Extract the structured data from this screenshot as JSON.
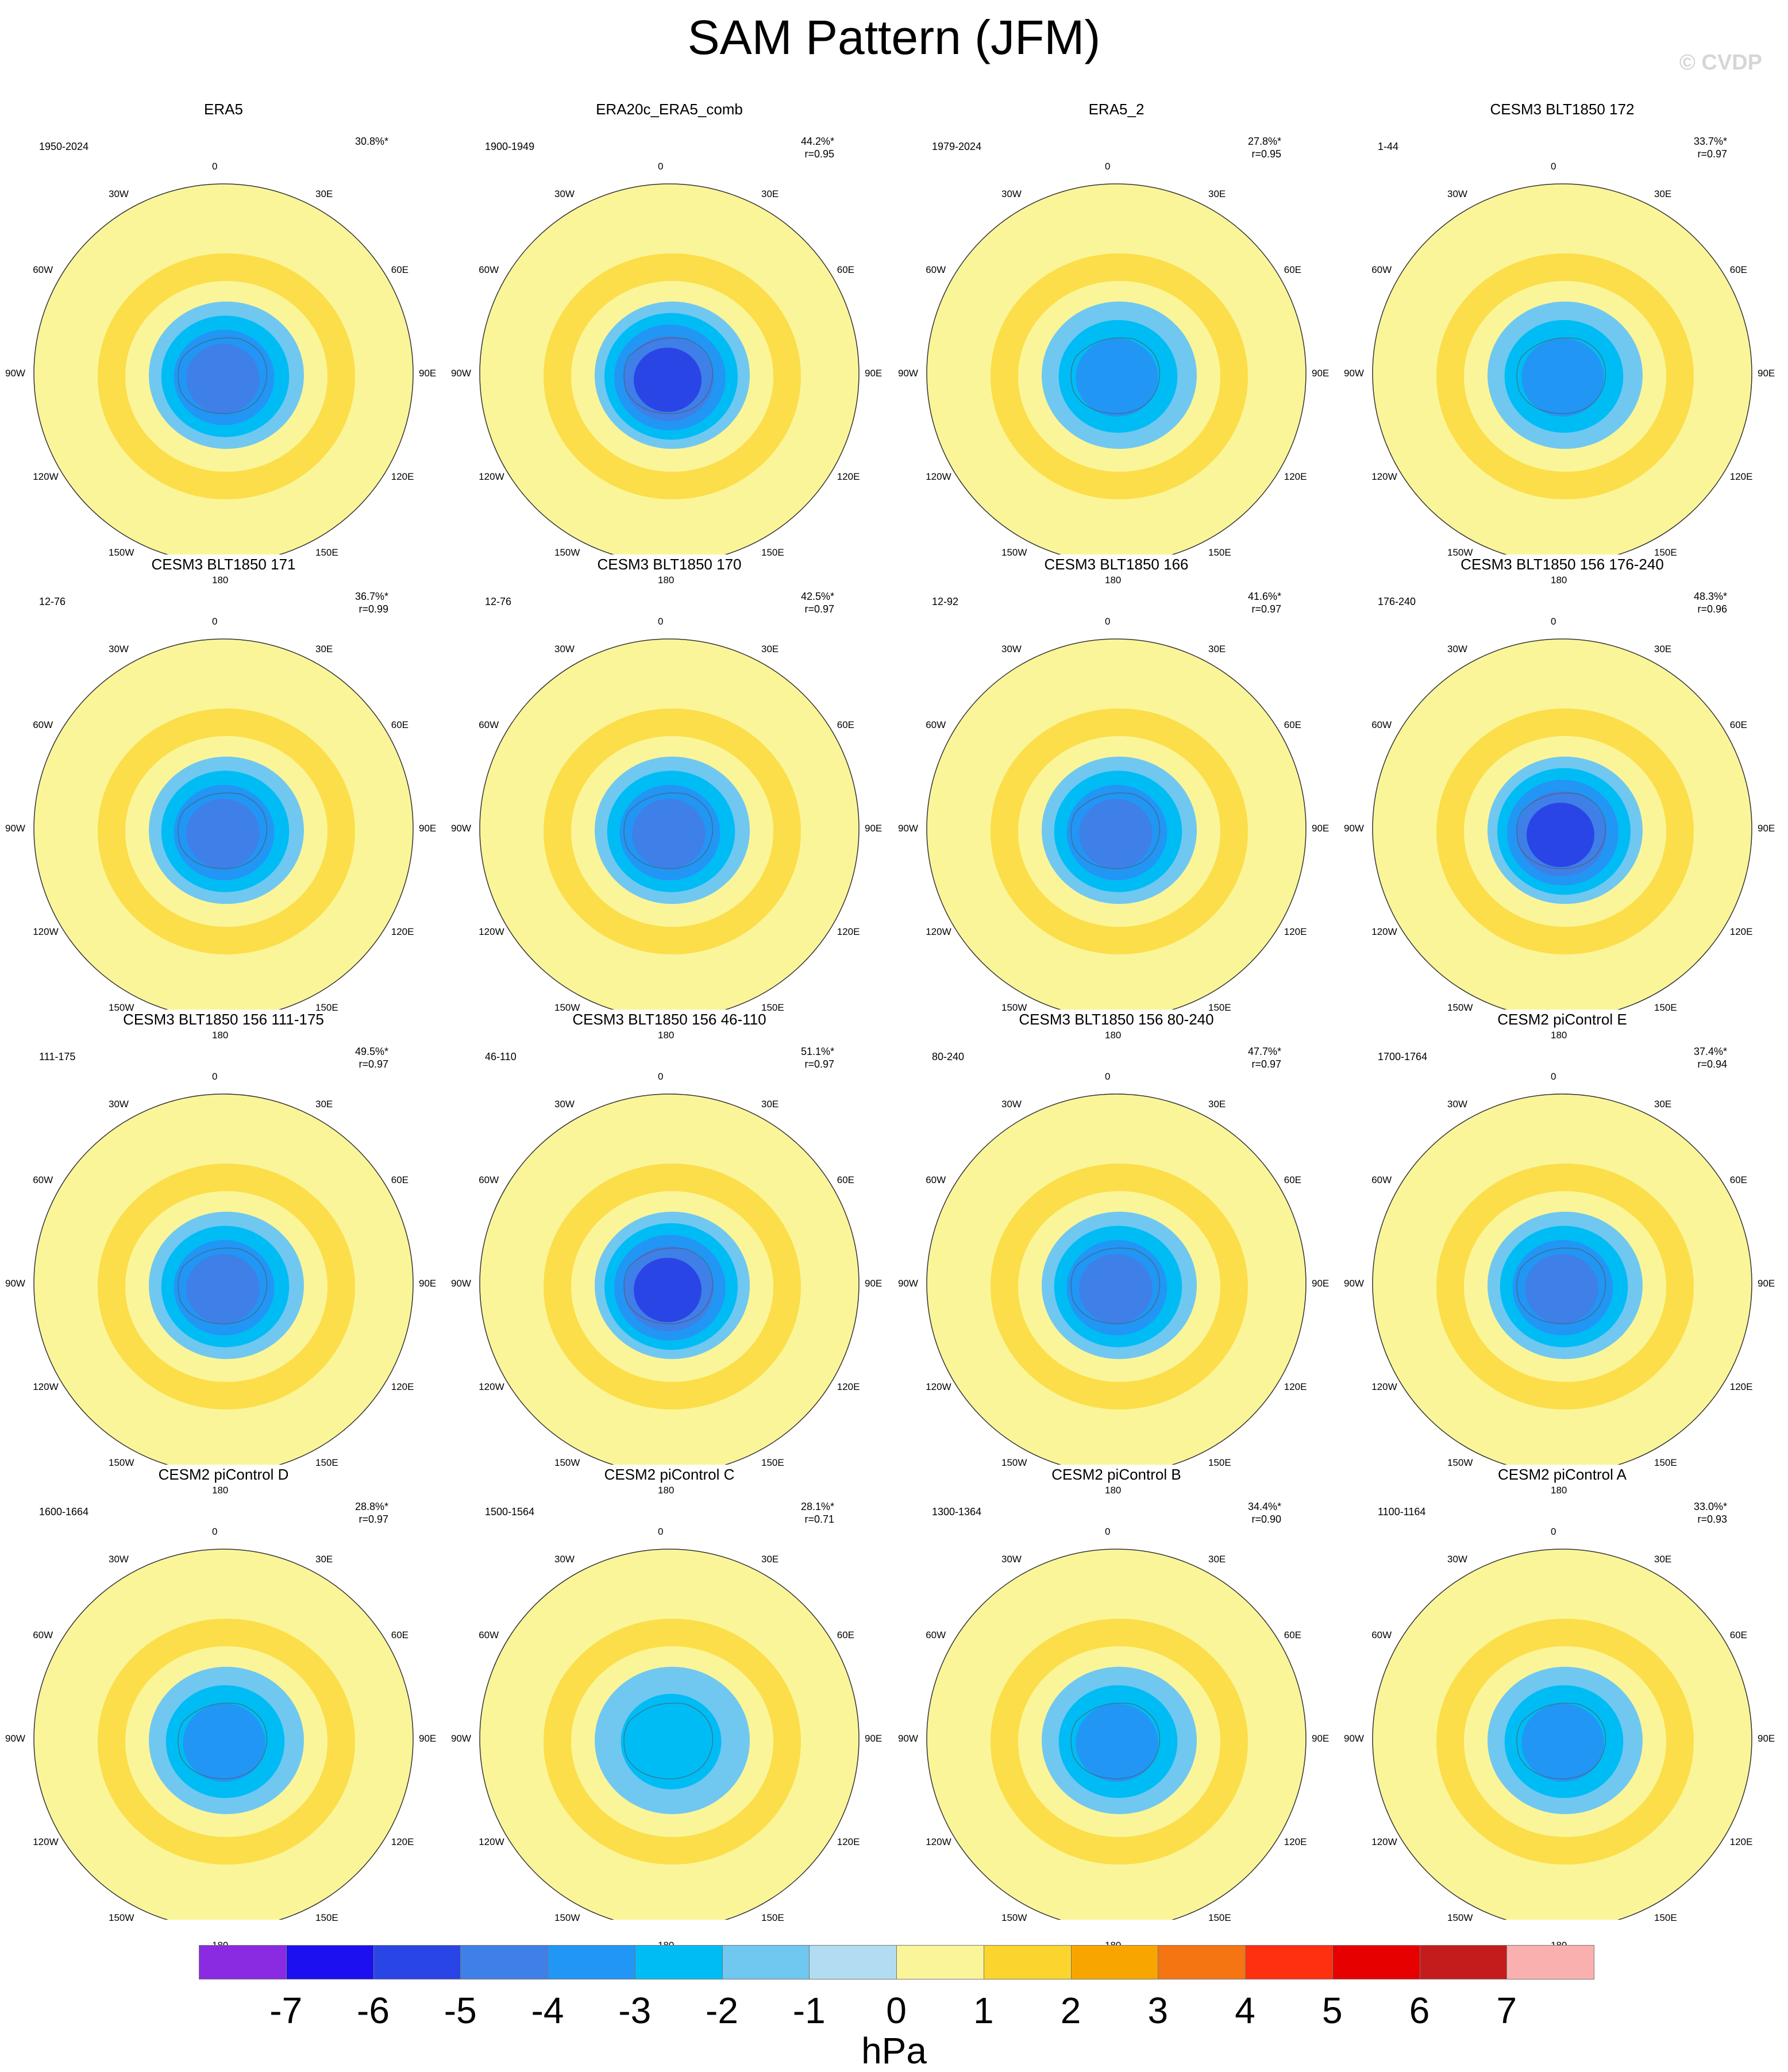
{
  "title": "SAM Pattern (JFM)",
  "watermark": "© CVDP",
  "chart_data": {
    "type": "polar-map",
    "variable_unit": "hPa",
    "projection": "south-polar stereographic",
    "lon_labels": [
      "0",
      "30E",
      "60E",
      "90E",
      "120E",
      "150E",
      "180",
      "150W",
      "120W",
      "90W",
      "60W",
      "30W"
    ],
    "colorbar": {
      "ticks": [
        "-7",
        "-6",
        "-5",
        "-4",
        "-3",
        "-2",
        "-1",
        "0",
        "1",
        "2",
        "3",
        "4",
        "5",
        "6",
        "7"
      ],
      "colors": [
        "#8a2be2",
        "#1c10f0",
        "#2a45e6",
        "#3f7fe8",
        "#2196f5",
        "#00bcf5",
        "#70c8f0",
        "#b2dcf2",
        "#fbf59a",
        "#fbd52d",
        "#f8a500",
        "#f57512",
        "#ff3010",
        "#e60000",
        "#c41c1c",
        "#fbb0b0"
      ]
    },
    "panels": [
      {
        "name": "ERA5",
        "years": "1950-2024",
        "variance": "30.8%*",
        "r": "",
        "center_min": -4
      },
      {
        "name": "ERA20c_ERA5_comb",
        "years": "1900-1949",
        "variance": "44.2%*",
        "r": "r=0.95",
        "center_min": -5
      },
      {
        "name": "ERA5_2",
        "years": "1979-2024",
        "variance": "27.8%*",
        "r": "r=0.95",
        "center_min": -3
      },
      {
        "name": "CESM3 BLT1850 172",
        "years": "1-44",
        "variance": "33.7%*",
        "r": "r=0.97",
        "center_min": -3
      },
      {
        "name": "CESM3 BLT1850 171",
        "years": "12-76",
        "variance": "36.7%*",
        "r": "r=0.99",
        "center_min": -4
      },
      {
        "name": "CESM3 BLT1850 170",
        "years": "12-76",
        "variance": "42.5%*",
        "r": "r=0.97",
        "center_min": -4
      },
      {
        "name": "CESM3 BLT1850 166",
        "years": "12-92",
        "variance": "41.6%*",
        "r": "r=0.97",
        "center_min": -4
      },
      {
        "name": "CESM3 BLT1850 156 176-240",
        "years": "176-240",
        "variance": "48.3%*",
        "r": "r=0.96",
        "center_min": -5
      },
      {
        "name": "CESM3 BLT1850 156 111-175",
        "years": "111-175",
        "variance": "49.5%*",
        "r": "r=0.97",
        "center_min": -4
      },
      {
        "name": "CESM3 BLT1850 156 46-110",
        "years": "46-110",
        "variance": "51.1%*",
        "r": "r=0.97",
        "center_min": -5
      },
      {
        "name": "CESM3 BLT1850 156 80-240",
        "years": "80-240",
        "variance": "47.7%*",
        "r": "r=0.97",
        "center_min": -4
      },
      {
        "name": "CESM2 piControl E",
        "years": "1700-1764",
        "variance": "37.4%*",
        "r": "r=0.94",
        "center_min": -4
      },
      {
        "name": "CESM2 piControl D",
        "years": "1600-1664",
        "variance": "28.8%*",
        "r": "r=0.97",
        "center_min": -3
      },
      {
        "name": "CESM2 piControl C",
        "years": "1500-1564",
        "variance": "28.1%*",
        "r": "r=0.71",
        "center_min": -2
      },
      {
        "name": "CESM2 piControl B",
        "years": "1300-1364",
        "variance": "34.4%*",
        "r": "r=0.90",
        "center_min": -3
      },
      {
        "name": "CESM2 piControl A",
        "years": "1100-1164",
        "variance": "33.0%*",
        "r": "r=0.93",
        "center_min": -3
      }
    ]
  }
}
